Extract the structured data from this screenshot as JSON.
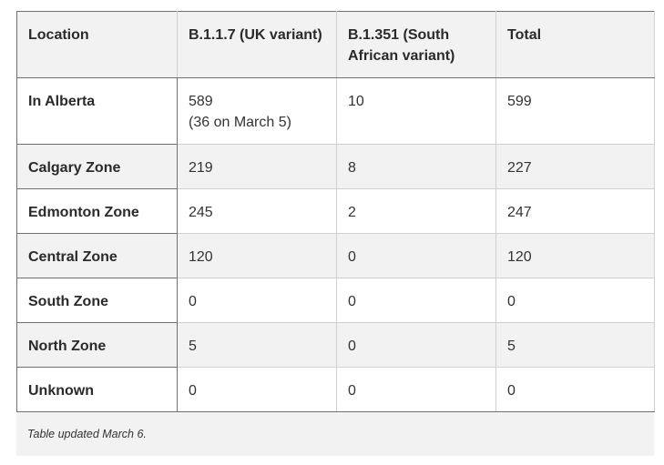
{
  "table": {
    "headers": [
      "Location",
      "B.1.1.7 (UK variant)",
      "B.1.351 (South African variant)",
      "Total"
    ],
    "rows": [
      {
        "location": "In Alberta",
        "uk": "589",
        "uk_note": "(36 on March 5)",
        "sa": "10",
        "total": "599"
      },
      {
        "location": "Calgary Zone",
        "uk": "219",
        "sa": "8",
        "total": "227"
      },
      {
        "location": "Edmonton Zone",
        "uk": "245",
        "sa": "2",
        "total": "247"
      },
      {
        "location": "Central Zone",
        "uk": "120",
        "sa": "0",
        "total": "120"
      },
      {
        "location": "South Zone",
        "uk": "0",
        "sa": "0",
        "total": "0"
      },
      {
        "location": "North Zone",
        "uk": "5",
        "sa": "0",
        "total": "5"
      },
      {
        "location": "Unknown",
        "uk": "0",
        "sa": "0",
        "total": "0"
      }
    ],
    "caption": "Table updated March 6."
  }
}
